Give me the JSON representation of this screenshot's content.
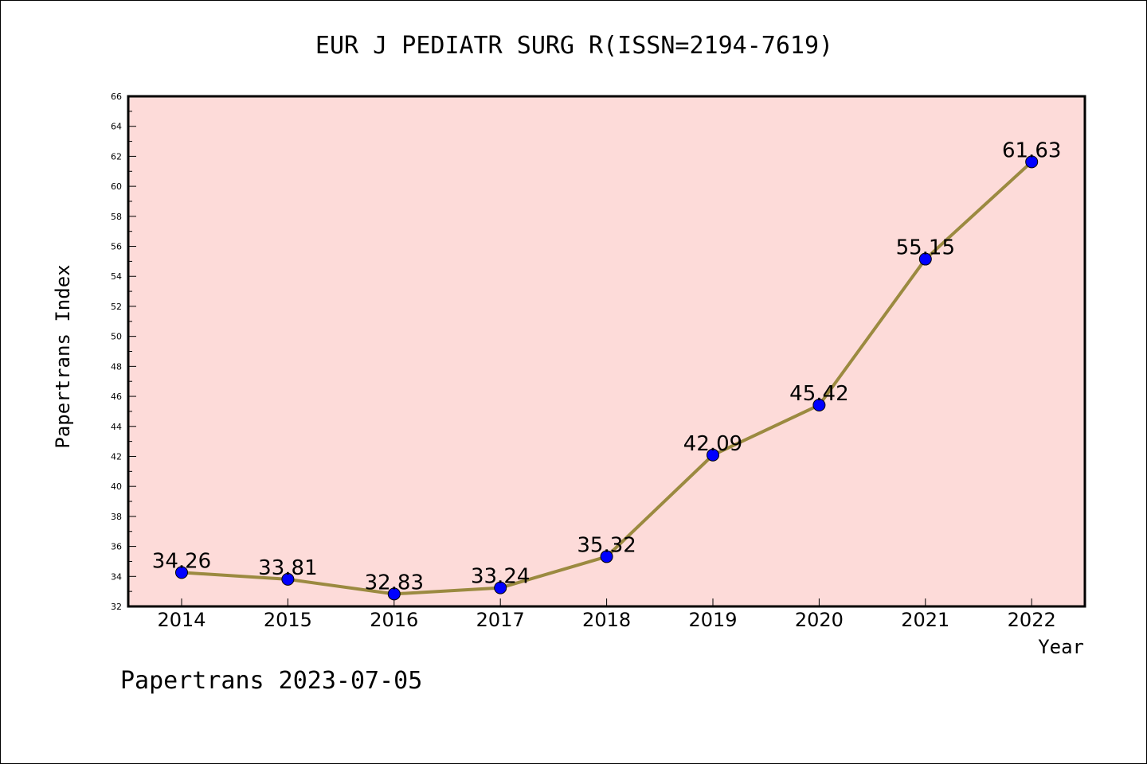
{
  "chart_data": {
    "type": "line",
    "title": "EUR J PEDIATR SURG R(ISSN=2194-7619)",
    "xlabel": "Year",
    "ylabel": "Papertrans Index",
    "categories": [
      "2014",
      "2015",
      "2016",
      "2017",
      "2018",
      "2019",
      "2020",
      "2021",
      "2022"
    ],
    "series": [
      {
        "values": [
          34.26,
          33.81,
          32.83,
          33.24,
          35.32,
          42.09,
          45.42,
          55.15,
          61.63
        ],
        "labels": [
          "34.26",
          "33.81",
          "32.83",
          "33.24",
          "35.32",
          "42.09",
          "45.42",
          "55.15",
          "61.63"
        ]
      }
    ],
    "ylim": [
      32,
      66
    ],
    "yticks": [
      "32",
      "34",
      "36",
      "38",
      "40",
      "42",
      "44",
      "46",
      "48",
      "50",
      "52",
      "54",
      "56",
      "58",
      "60",
      "62",
      "64",
      "66"
    ],
    "grid": false,
    "legend": "none",
    "footer": "Papertrans 2023-07-05",
    "colors": {
      "plot_background": "#fddbd9",
      "line": "#9b8a40",
      "marker": "#0000ff"
    }
  }
}
